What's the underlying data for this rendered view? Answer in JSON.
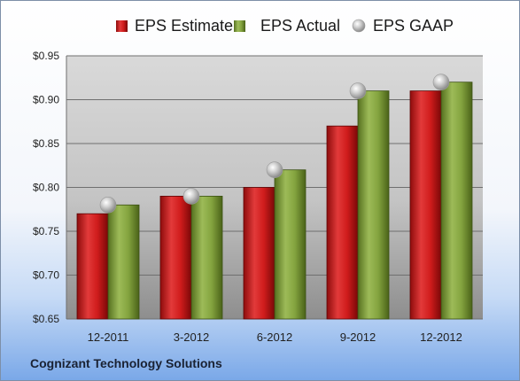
{
  "chart_data": {
    "type": "bar",
    "categories": [
      "12-2011",
      "3-2012",
      "6-2012",
      "9-2012",
      "12-2012"
    ],
    "series": [
      {
        "name": "EPS Estimate",
        "kind": "bar",
        "color": "#cc1a1a",
        "values": [
          0.77,
          0.79,
          0.8,
          0.87,
          0.91
        ]
      },
      {
        "name": "EPS Actual",
        "kind": "bar",
        "color": "#7a9a35",
        "values": [
          0.78,
          0.79,
          0.82,
          0.91,
          0.92
        ]
      },
      {
        "name": "EPS GAAP",
        "kind": "marker",
        "color": "#b8b8b8",
        "values": [
          0.78,
          0.79,
          0.82,
          0.91,
          0.92
        ]
      }
    ],
    "yticks": [
      "$0.65",
      "$0.70",
      "$0.75",
      "$0.80",
      "$0.85",
      "$0.90",
      "$0.95"
    ],
    "ylim": [
      0.65,
      0.95
    ],
    "grid": true,
    "legend": "top"
  },
  "footer": {
    "company": "Cognizant Technology Solutions"
  }
}
